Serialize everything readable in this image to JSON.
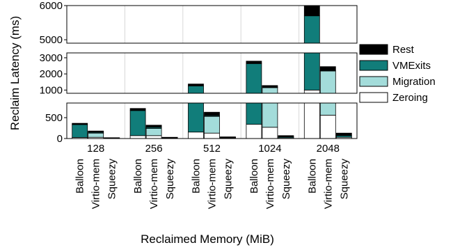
{
  "chart_data": {
    "type": "bar",
    "stacked": true,
    "grouped": true,
    "broken_y_axis": true,
    "title": "",
    "xlabel": "Reclaimed Memory (MiB)",
    "ylabel": "Reclaim Latency (ms)",
    "categories": [
      "128",
      "256",
      "512",
      "1024",
      "2048"
    ],
    "methods": [
      "Balloon",
      "Virtio-mem",
      "Squeezy"
    ],
    "y_panels": [
      {
        "range": [
          0,
          850
        ],
        "ticks": [
          0,
          500
        ]
      },
      {
        "range": [
          800,
          3300
        ],
        "ticks": [
          1000,
          2000,
          3000
        ]
      },
      {
        "range": [
          4900,
          6000
        ],
        "ticks": [
          5000,
          6000
        ]
      }
    ],
    "series": [
      {
        "name": "Zeroing",
        "color": "#ffffff",
        "values": {
          "128": [
            25,
            30,
            8
          ],
          "256": [
            70,
            70,
            12
          ],
          "512": [
            155,
            130,
            15
          ],
          "1024": [
            340,
            270,
            20
          ],
          "2048": [
            1000,
            560,
            30
          ]
        }
      },
      {
        "name": "Migration",
        "color": "#a3dcda",
        "values": {
          "128": [
            0,
            100,
            0
          ],
          "256": [
            0,
            170,
            0
          ],
          "512": [
            0,
            400,
            0
          ],
          "1024": [
            0,
            880,
            0
          ],
          "2048": [
            0,
            1620,
            0
          ]
        }
      },
      {
        "name": "VMExits",
        "color": "#117d7a",
        "values": {
          "128": [
            310,
            20,
            8
          ],
          "256": [
            600,
            30,
            12
          ],
          "512": [
            1100,
            20,
            15
          ],
          "1024": [
            2300,
            30,
            20
          ],
          "2048": [
            4700,
            40,
            40
          ]
        }
      },
      {
        "name": "Rest",
        "color": "#000000",
        "values": {
          "128": [
            30,
            30,
            4
          ],
          "256": [
            50,
            50,
            6
          ],
          "512": [
            120,
            80,
            10
          ],
          "1024": [
            150,
            100,
            30
          ],
          "2048": [
            400,
            230,
            60
          ]
        }
      }
    ],
    "legend": {
      "position": "right",
      "order": [
        "Rest",
        "VMExits",
        "Migration",
        "Zeroing"
      ]
    },
    "grid": {
      "y": false,
      "x_vertical_lines": true
    }
  }
}
